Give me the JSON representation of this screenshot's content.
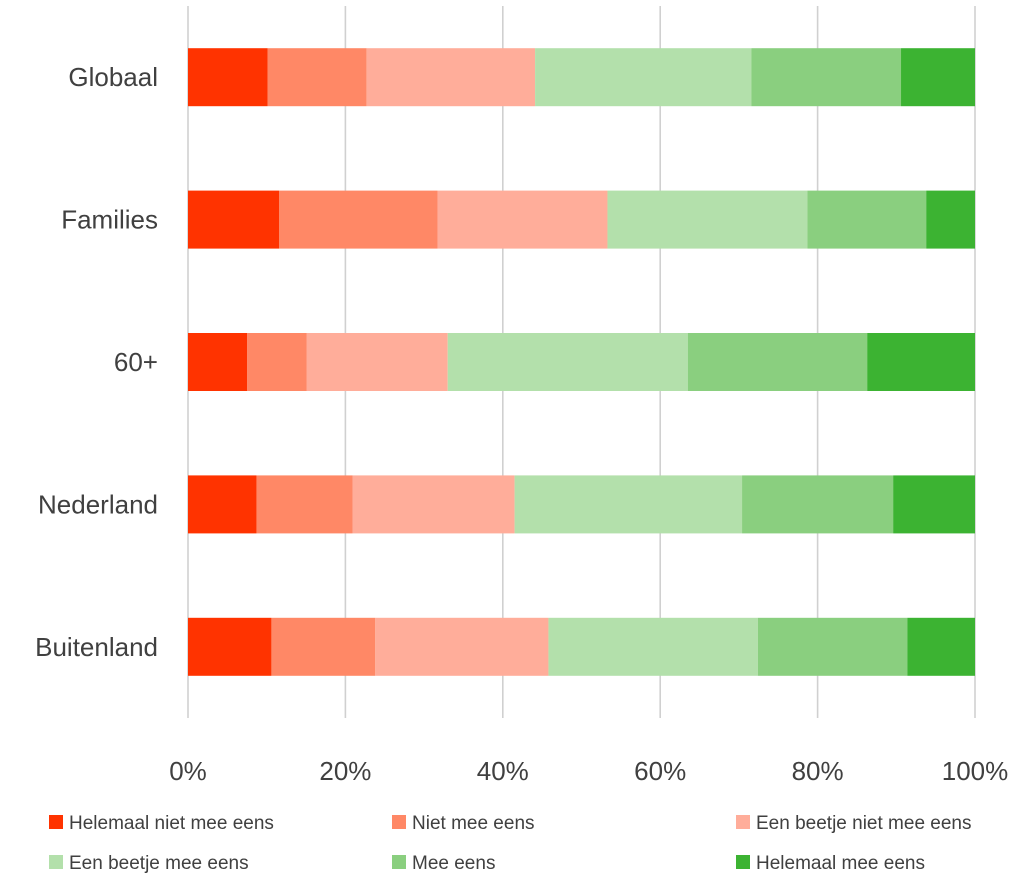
{
  "chart_data": {
    "type": "bar",
    "orientation": "horizontal",
    "stacked": "percent",
    "categories": [
      "Globaal",
      "Families",
      "60+",
      "Nederland",
      "Buitenland"
    ],
    "series": [
      {
        "name": "Helemaal niet mee eens",
        "color": "#FF3300",
        "values": [
          10.1,
          11.6,
          7.5,
          8.7,
          10.6
        ]
      },
      {
        "name": "Niet mee eens",
        "color": "#FF8866",
        "values": [
          12.6,
          20.1,
          7.6,
          12.2,
          13.2
        ]
      },
      {
        "name": "Een beetje niet mee eens",
        "color": "#FFAD9A",
        "values": [
          21.4,
          21.6,
          17.9,
          20.6,
          22.0
        ]
      },
      {
        "name": "Een beetje mee eens",
        "color": "#B3E0AB",
        "values": [
          27.5,
          25.4,
          30.5,
          28.9,
          26.6
        ]
      },
      {
        "name": "Mee eens",
        "color": "#8ACF7F",
        "values": [
          19.0,
          15.1,
          22.8,
          19.2,
          19.0
        ]
      },
      {
        "name": "Helemaal mee eens",
        "color": "#3CB332",
        "values": [
          9.4,
          6.2,
          13.7,
          10.4,
          8.6
        ]
      }
    ],
    "x_ticks": [
      "0%",
      "20%",
      "40%",
      "60%",
      "80%",
      "100%"
    ],
    "xlim": [
      0,
      100
    ],
    "grid": true,
    "legend_position": "bottom"
  }
}
